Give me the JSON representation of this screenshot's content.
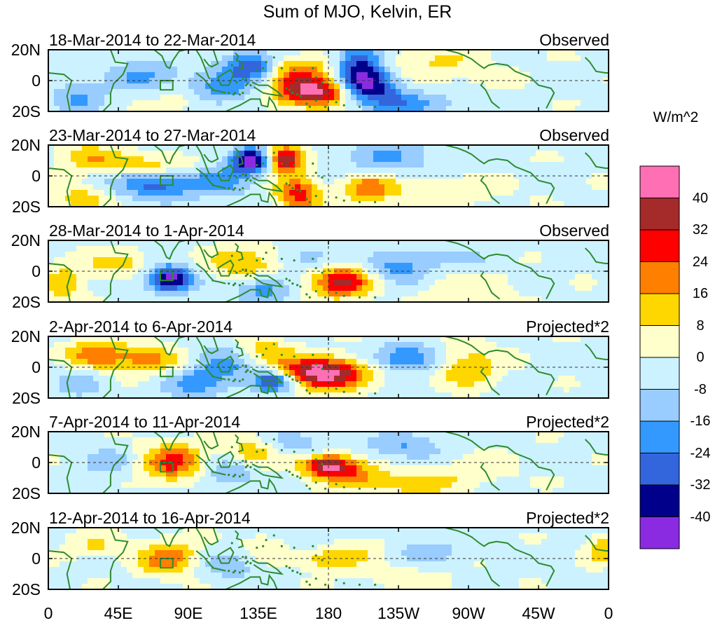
{
  "chart_data": {
    "type": "heatmap",
    "title": "Sum of MJO, Kelvin, ER",
    "colorbar": {
      "units": "W/m^2",
      "levels": [
        40,
        32,
        24,
        16,
        8,
        0,
        -8,
        -16,
        -24,
        -32,
        -40
      ],
      "colors": [
        "#ff6fb4",
        "#a52a2a",
        "#ff0000",
        "#ff7f00",
        "#ffd700",
        "#ffffcc",
        "#ccf2ff",
        "#99ccff",
        "#3399ff",
        "#3366dd",
        "#00008b",
        "#8a2be2"
      ]
    },
    "lat_ticks": [
      "20N",
      "0",
      "20S"
    ],
    "lon_ticks": [
      "0",
      "45E",
      "90E",
      "135E",
      "180",
      "135W",
      "90W",
      "45W",
      "0"
    ],
    "lat_range": [
      -20,
      20
    ],
    "lon_range": [
      0,
      360
    ],
    "panels": [
      {
        "date_range": "18-Mar-2014 to 22-Mar-2014",
        "type": "Observed",
        "features": [
          {
            "lon": 170,
            "lat": -7,
            "value": 48,
            "sx": 18,
            "sy": 7
          },
          {
            "lon": 205,
            "lat": -3,
            "value": -42,
            "sx": 14,
            "sy": 7
          },
          {
            "lon": 200,
            "lat": 12,
            "value": -33,
            "sx": 10,
            "sy": 8
          },
          {
            "lon": 130,
            "lat": 10,
            "value": -30,
            "sx": 12,
            "sy": 6
          },
          {
            "lon": 160,
            "lat": 8,
            "value": 20,
            "sx": 14,
            "sy": 6
          },
          {
            "lon": 110,
            "lat": -5,
            "value": -18,
            "sx": 20,
            "sy": 8
          },
          {
            "lon": 60,
            "lat": 4,
            "value": -14,
            "sx": 15,
            "sy": 8
          },
          {
            "lon": 245,
            "lat": 10,
            "value": 10,
            "sx": 30,
            "sy": 10
          },
          {
            "lon": 20,
            "lat": -10,
            "value": -14,
            "sx": 12,
            "sy": 8
          },
          {
            "lon": 85,
            "lat": -12,
            "value": 12,
            "sx": 12,
            "sy": 6
          },
          {
            "lon": 230,
            "lat": -15,
            "value": -18,
            "sx": 25,
            "sy": 6
          }
        ]
      },
      {
        "date_range": "23-Mar-2014 to 27-Mar-2014",
        "type": "Observed",
        "features": [
          {
            "lon": 130,
            "lat": 10,
            "value": -42,
            "sx": 9,
            "sy": 6
          },
          {
            "lon": 152,
            "lat": 11,
            "value": 44,
            "sx": 8,
            "sy": 6
          },
          {
            "lon": 160,
            "lat": -12,
            "value": 30,
            "sx": 10,
            "sy": 8
          },
          {
            "lon": 205,
            "lat": -8,
            "value": 22,
            "sx": 12,
            "sy": 6
          },
          {
            "lon": 25,
            "lat": 12,
            "value": 18,
            "sx": 14,
            "sy": 6
          },
          {
            "lon": 20,
            "lat": -16,
            "value": 16,
            "sx": 12,
            "sy": 6
          },
          {
            "lon": 70,
            "lat": -6,
            "value": -26,
            "sx": 18,
            "sy": 6
          },
          {
            "lon": 110,
            "lat": -3,
            "value": -16,
            "sx": 14,
            "sy": 8
          },
          {
            "lon": 220,
            "lat": 12,
            "value": -14,
            "sx": 22,
            "sy": 8
          },
          {
            "lon": 70,
            "lat": 8,
            "value": 14,
            "sx": 18,
            "sy": 5
          },
          {
            "lon": 250,
            "lat": -10,
            "value": 8,
            "sx": 30,
            "sy": 8
          }
        ]
      },
      {
        "date_range": "28-Mar-2014 to 1-Apr-2014",
        "type": "Observed",
        "features": [
          {
            "lon": 78,
            "lat": -5,
            "value": -42,
            "sx": 10,
            "sy": 6
          },
          {
            "lon": 188,
            "lat": -7,
            "value": 36,
            "sx": 14,
            "sy": 7
          },
          {
            "lon": 125,
            "lat": 6,
            "value": 20,
            "sx": 15,
            "sy": 7
          },
          {
            "lon": 138,
            "lat": -12,
            "value": -18,
            "sx": 12,
            "sy": 6
          },
          {
            "lon": 45,
            "lat": 5,
            "value": 14,
            "sx": 14,
            "sy": 6
          },
          {
            "lon": 10,
            "lat": -8,
            "value": 14,
            "sx": 10,
            "sy": 10
          },
          {
            "lon": 225,
            "lat": 0,
            "value": -16,
            "sx": 14,
            "sy": 7
          },
          {
            "lon": 170,
            "lat": 8,
            "value": -12,
            "sx": 12,
            "sy": 6
          },
          {
            "lon": 265,
            "lat": -10,
            "value": 8,
            "sx": 25,
            "sy": 8
          },
          {
            "lon": 250,
            "lat": 8,
            "value": -8,
            "sx": 25,
            "sy": 6
          }
        ]
      },
      {
        "date_range": "2-Apr-2014 to 6-Apr-2014",
        "type": "Projected*2",
        "features": [
          {
            "lon": 175,
            "lat": -4,
            "value": 50,
            "sx": 20,
            "sy": 7
          },
          {
            "lon": 145,
            "lat": -9,
            "value": -38,
            "sx": 10,
            "sy": 5
          },
          {
            "lon": 30,
            "lat": 8,
            "value": 22,
            "sx": 14,
            "sy": 7
          },
          {
            "lon": 65,
            "lat": 5,
            "value": 22,
            "sx": 16,
            "sy": 6
          },
          {
            "lon": 270,
            "lat": 0,
            "value": 18,
            "sx": 14,
            "sy": 9
          },
          {
            "lon": 110,
            "lat": 0,
            "value": -18,
            "sx": 16,
            "sy": 9
          },
          {
            "lon": 230,
            "lat": 6,
            "value": -24,
            "sx": 14,
            "sy": 6
          },
          {
            "lon": 140,
            "lat": 10,
            "value": 16,
            "sx": 12,
            "sy": 6
          },
          {
            "lon": 90,
            "lat": -12,
            "value": -12,
            "sx": 15,
            "sy": 6
          },
          {
            "lon": 20,
            "lat": -10,
            "value": -10,
            "sx": 12,
            "sy": 8
          }
        ]
      },
      {
        "date_range": "7-Apr-2014 to 11-Apr-2014",
        "type": "Projected*2",
        "features": [
          {
            "lon": 180,
            "lat": -2,
            "value": 44,
            "sx": 12,
            "sy": 5
          },
          {
            "lon": 80,
            "lat": 0,
            "value": 28,
            "sx": 16,
            "sy": 9
          },
          {
            "lon": 200,
            "lat": -10,
            "value": 18,
            "sx": 14,
            "sy": 6
          },
          {
            "lon": 130,
            "lat": 6,
            "value": 16,
            "sx": 12,
            "sy": 7
          },
          {
            "lon": 115,
            "lat": -6,
            "value": -16,
            "sx": 14,
            "sy": 7
          },
          {
            "lon": 235,
            "lat": -14,
            "value": 16,
            "sx": 16,
            "sy": 5
          },
          {
            "lon": 230,
            "lat": 10,
            "value": -14,
            "sx": 18,
            "sy": 6
          },
          {
            "lon": 40,
            "lat": 0,
            "value": -10,
            "sx": 15,
            "sy": 8
          },
          {
            "lon": 160,
            "lat": 12,
            "value": -10,
            "sx": 14,
            "sy": 6
          },
          {
            "lon": 270,
            "lat": -5,
            "value": 8,
            "sx": 20,
            "sy": 8
          }
        ]
      },
      {
        "date_range": "12-Apr-2014 to 16-Apr-2014",
        "type": "Projected*2",
        "features": [
          {
            "lon": 78,
            "lat": 0,
            "value": 24,
            "sx": 14,
            "sy": 8
          },
          {
            "lon": 180,
            "lat": 0,
            "value": 18,
            "sx": 14,
            "sy": 5
          },
          {
            "lon": 115,
            "lat": -4,
            "value": -12,
            "sx": 15,
            "sy": 7
          },
          {
            "lon": 140,
            "lat": 8,
            "value": 12,
            "sx": 12,
            "sy": 6
          },
          {
            "lon": 205,
            "lat": 8,
            "value": 10,
            "sx": 14,
            "sy": 6
          },
          {
            "lon": 30,
            "lat": 8,
            "value": 10,
            "sx": 14,
            "sy": 6
          },
          {
            "lon": 240,
            "lat": 5,
            "value": -10,
            "sx": 20,
            "sy": 7
          },
          {
            "lon": 355,
            "lat": 6,
            "value": 18,
            "sx": 6,
            "sy": 6
          },
          {
            "lon": 230,
            "lat": -12,
            "value": 8,
            "sx": 20,
            "sy": 6
          },
          {
            "lon": 165,
            "lat": 12,
            "value": -8,
            "sx": 14,
            "sy": 6
          }
        ]
      }
    ]
  }
}
